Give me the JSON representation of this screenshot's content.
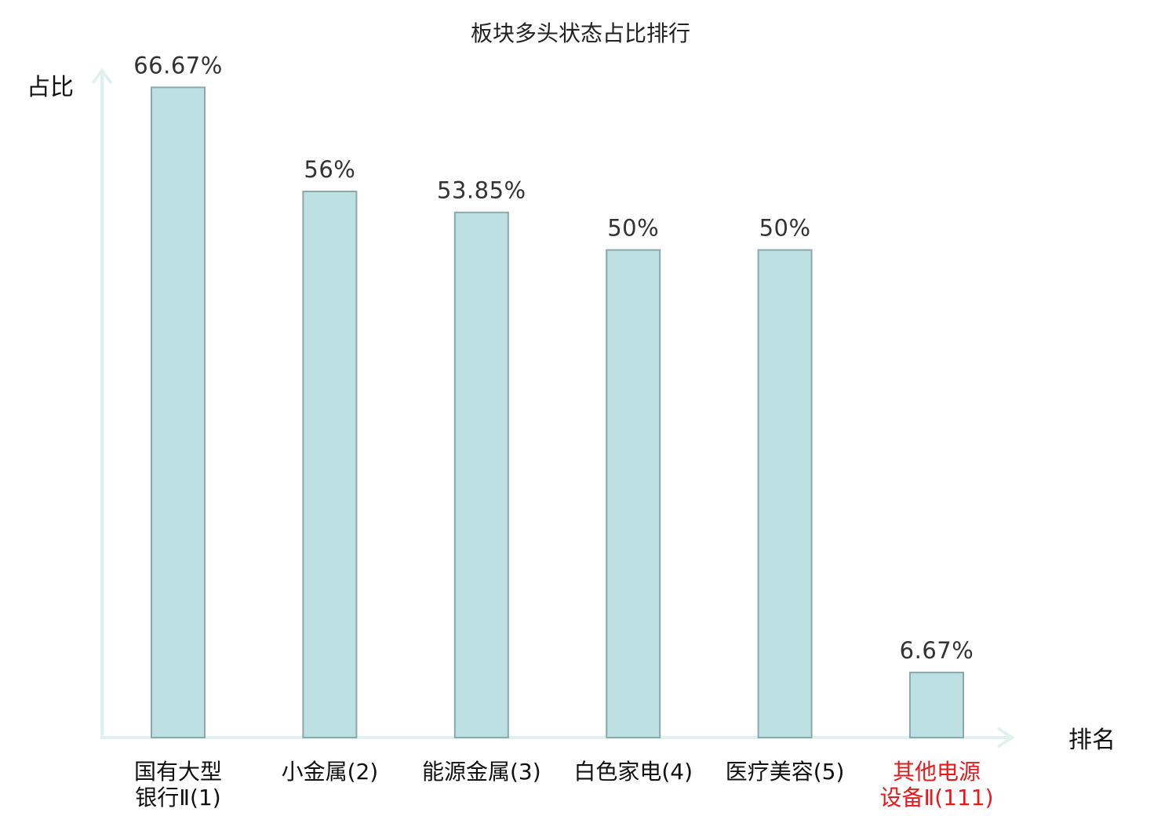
{
  "chart_data": {
    "type": "bar",
    "title": "板块多头状态占比排行",
    "ylabel": "占比",
    "xlabel": "排名",
    "ylim": [
      0,
      70
    ],
    "grid": false,
    "categories": [
      {
        "lines": [
          "国有大型",
          "银行Ⅱ(1)"
        ],
        "highlight": false
      },
      {
        "lines": [
          "小金属(2)"
        ],
        "highlight": false
      },
      {
        "lines": [
          "能源金属(3)"
        ],
        "highlight": false
      },
      {
        "lines": [
          "白色家电(4)"
        ],
        "highlight": false
      },
      {
        "lines": [
          "医疗美容(5)"
        ],
        "highlight": false
      },
      {
        "lines": [
          "其他电源",
          "设备Ⅱ(111)"
        ],
        "highlight": true
      }
    ],
    "values": [
      66.67,
      56,
      53.85,
      50,
      50,
      6.67
    ],
    "value_labels": [
      "66.67%",
      "56%",
      "53.85%",
      "50%",
      "50%",
      "6.67%"
    ],
    "colors": {
      "bar_fill": "#bde0e3",
      "bar_stroke": "#8aa9ad",
      "axis": "#e0f2ef",
      "highlight": "#e8191a"
    }
  }
}
